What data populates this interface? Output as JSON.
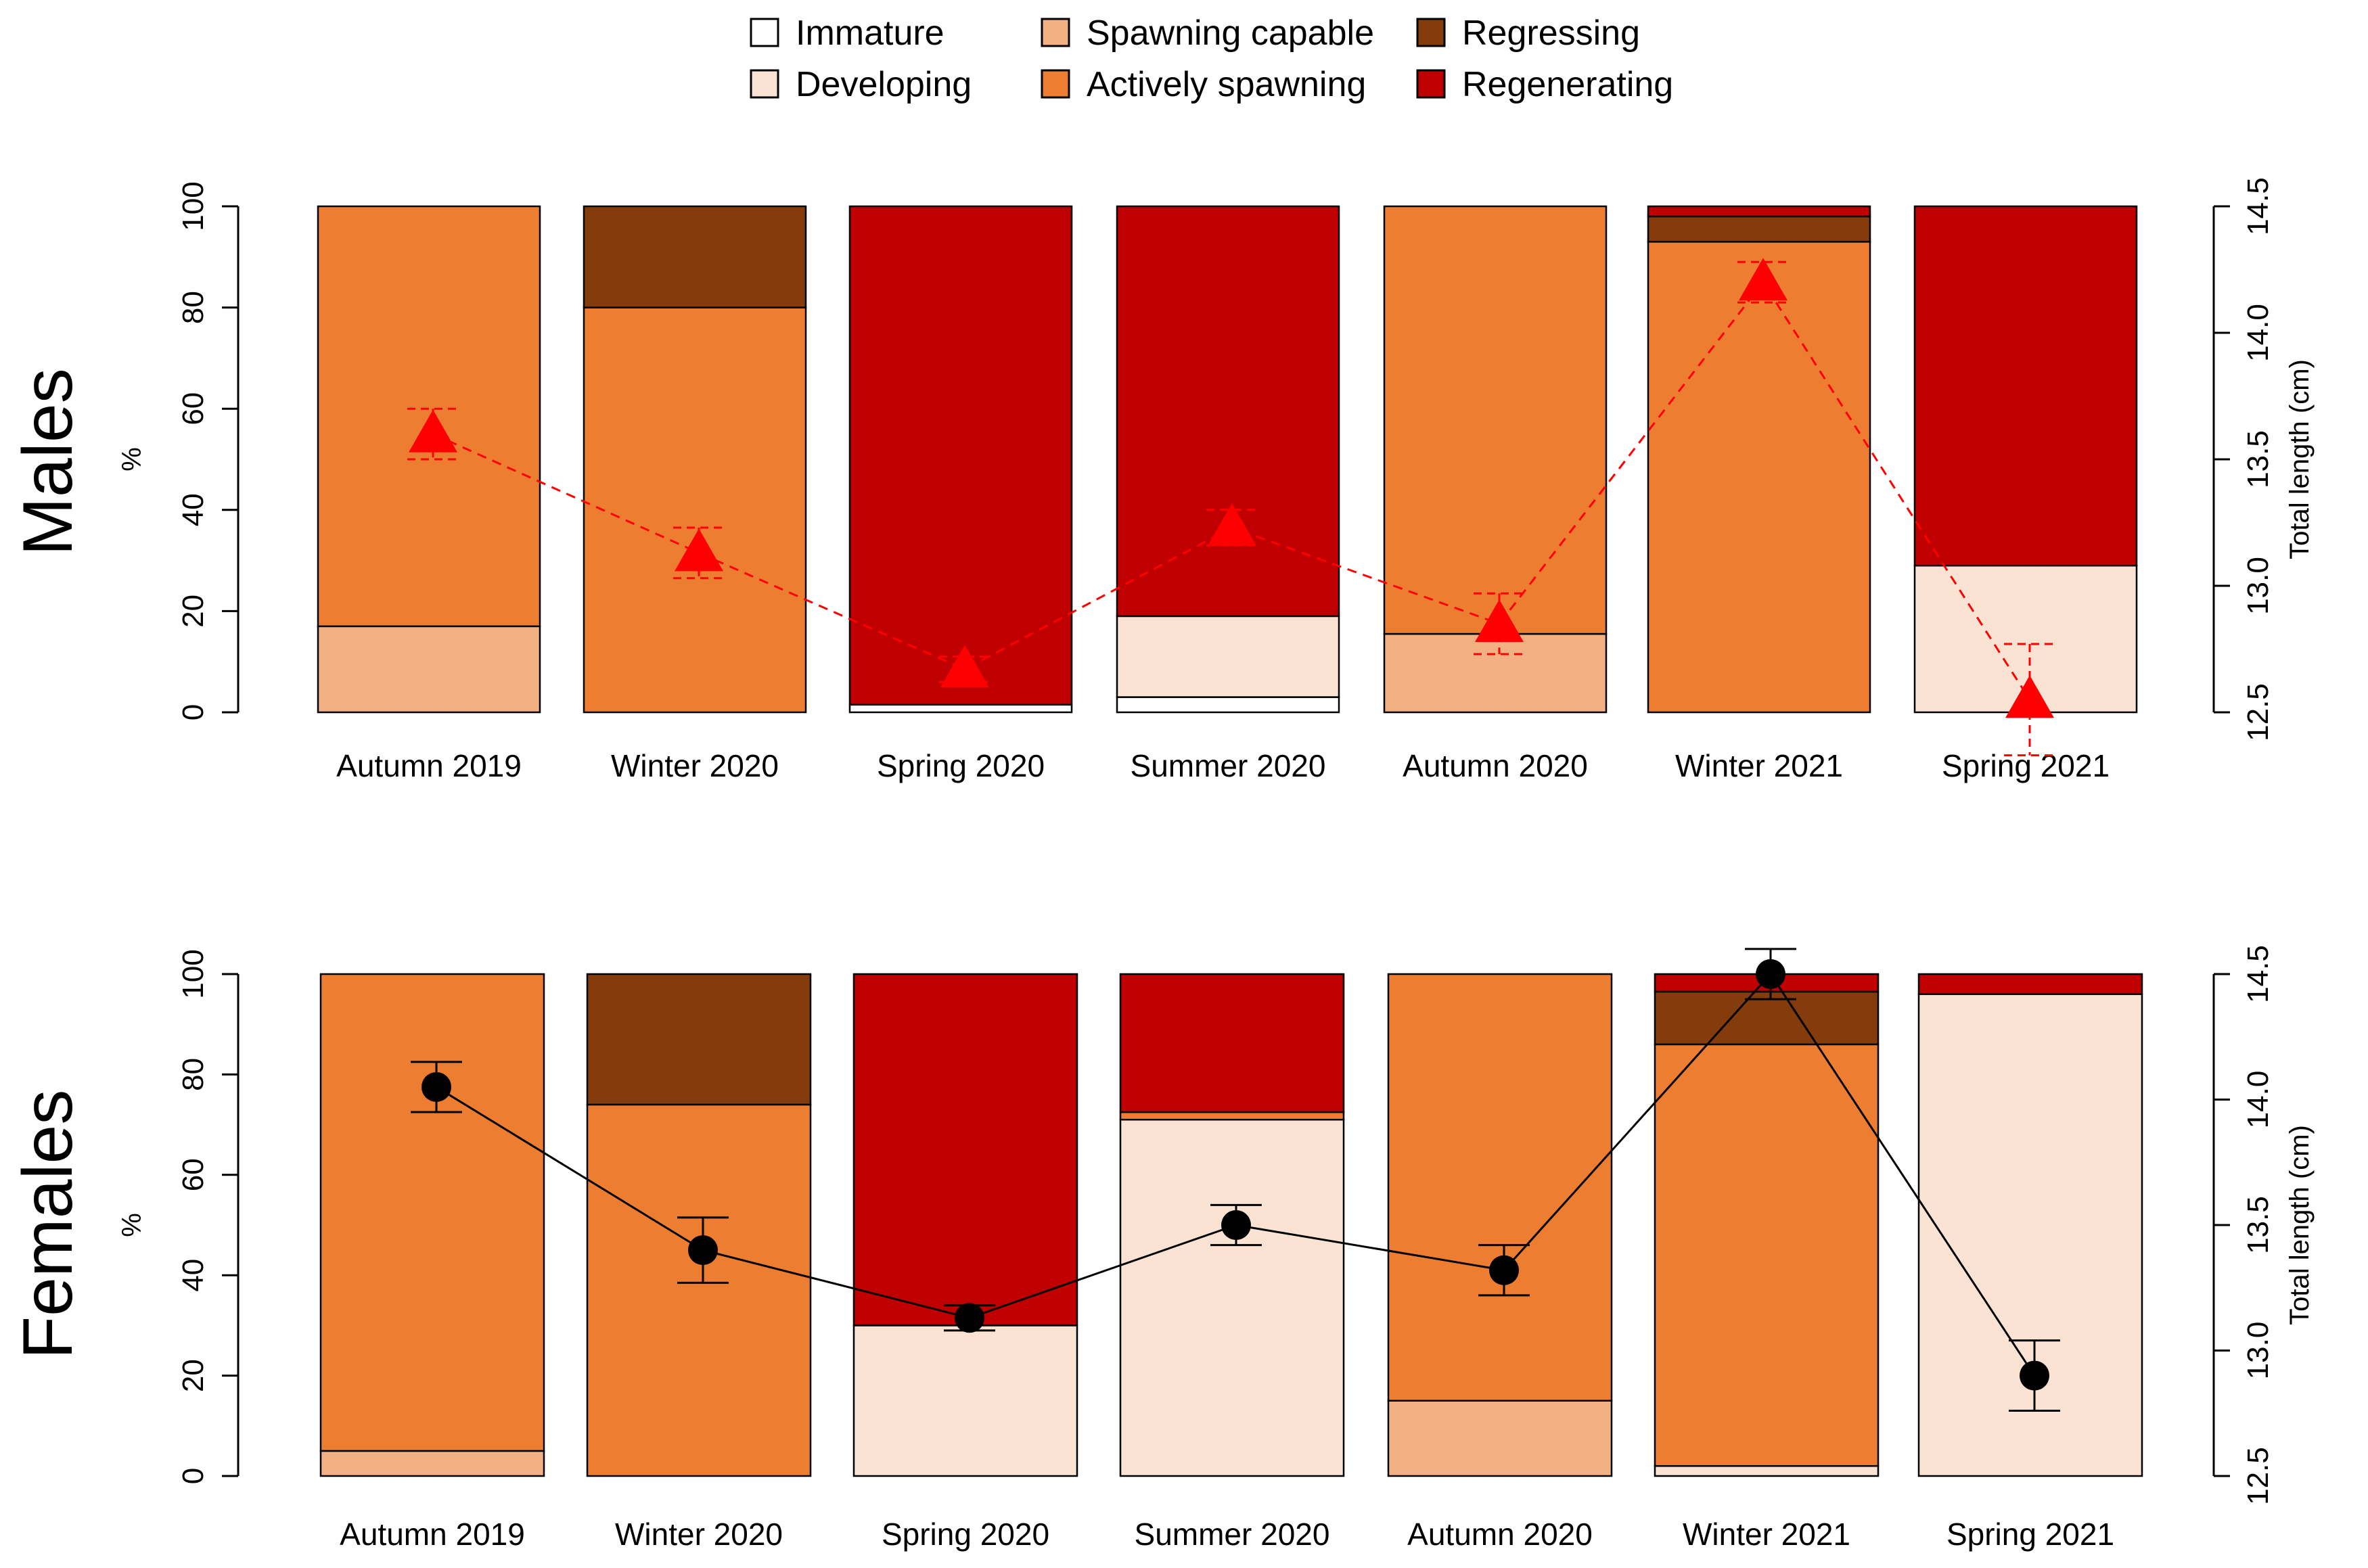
{
  "legend": [
    {
      "label": "Immature",
      "color": "#ffffff"
    },
    {
      "label": "Developing",
      "color": "#fbe3d4"
    },
    {
      "label": "Spawning capable",
      "color": "#f3b083"
    },
    {
      "label": "Actively spawning",
      "color": "#ed7d31"
    },
    {
      "label": "Regressing",
      "color": "#843c0c"
    },
    {
      "label": "Regenerating",
      "color": "#c00000"
    }
  ],
  "chart_data": [
    {
      "type": "bar",
      "panel": "Males",
      "stacked": true,
      "categories": [
        "Autumn 2019",
        "Winter 2020",
        "Spring 2020",
        "Summer 2020",
        "Autumn 2020",
        "Winter 2021",
        "Spring 2021"
      ],
      "ylabel": "%",
      "ylim": [
        0,
        100
      ],
      "yticks": [
        "0",
        "20",
        "40",
        "60",
        "80",
        "100"
      ],
      "y2label": "Total length  (cm)",
      "y2lim": [
        12.5,
        14.5
      ],
      "y2ticks": [
        "12.5",
        "13.0",
        "13.5",
        "14.0",
        "14.5"
      ],
      "series": [
        {
          "name": "Immature",
          "values": [
            0,
            0,
            1.5,
            3,
            0,
            0,
            0
          ]
        },
        {
          "name": "Developing",
          "values": [
            0,
            0,
            0,
            16,
            0,
            0,
            29
          ]
        },
        {
          "name": "Spawning capable",
          "values": [
            17,
            0,
            0,
            0,
            15.5,
            0,
            0
          ]
        },
        {
          "name": "Actively spawning",
          "values": [
            83,
            80,
            0,
            0,
            84.5,
            93,
            0
          ]
        },
        {
          "name": "Regressing",
          "values": [
            0,
            20,
            0,
            0,
            0,
            5,
            0
          ]
        },
        {
          "name": "Regenerating",
          "values": [
            0,
            0,
            98.5,
            81,
            0,
            2,
            71
          ]
        }
      ],
      "length_line": {
        "name": "Total length",
        "marker": "triangle",
        "color": "#ff0000",
        "linestyle": "dashed",
        "values": [
          13.6,
          13.13,
          12.67,
          13.23,
          12.85,
          14.2,
          12.55
        ],
        "err": [
          0.1,
          0.1,
          0.05,
          0.07,
          0.12,
          0.08,
          0.22
        ]
      }
    },
    {
      "type": "bar",
      "panel": "Females",
      "stacked": true,
      "categories": [
        "Autumn 2019",
        "Winter 2020",
        "Spring 2020",
        "Summer 2020",
        "Autumn 2020",
        "Winter 2021",
        "Spring 2021"
      ],
      "ylabel": "%",
      "ylim": [
        0,
        100
      ],
      "yticks": [
        "0",
        "20",
        "40",
        "60",
        "80",
        "100"
      ],
      "y2label": "Total length  (cm)",
      "y2lim": [
        12.5,
        14.5
      ],
      "y2ticks": [
        "12.5",
        "13.0",
        "13.5",
        "14.0",
        "14.5"
      ],
      "series": [
        {
          "name": "Immature",
          "values": [
            0,
            0,
            0,
            0,
            0,
            0,
            0
          ]
        },
        {
          "name": "Developing",
          "values": [
            0,
            0,
            30,
            71,
            0,
            2,
            96
          ]
        },
        {
          "name": "Spawning capable",
          "values": [
            5,
            0,
            0,
            0,
            15,
            0,
            0
          ]
        },
        {
          "name": "Actively spawning",
          "values": [
            95,
            74,
            0,
            1.5,
            85,
            84,
            0
          ]
        },
        {
          "name": "Regressing",
          "values": [
            0,
            26,
            0,
            0,
            0,
            10.5,
            0
          ]
        },
        {
          "name": "Regenerating",
          "values": [
            0,
            0,
            70,
            27.5,
            0,
            3.5,
            4
          ]
        }
      ],
      "length_line": {
        "name": "Total length",
        "marker": "circle",
        "color": "#000000",
        "linestyle": "solid",
        "values": [
          14.05,
          13.4,
          13.13,
          13.5,
          13.32,
          14.5,
          12.9
        ],
        "err": [
          0.1,
          0.13,
          0.05,
          0.08,
          0.1,
          0.1,
          0.14
        ]
      }
    }
  ]
}
